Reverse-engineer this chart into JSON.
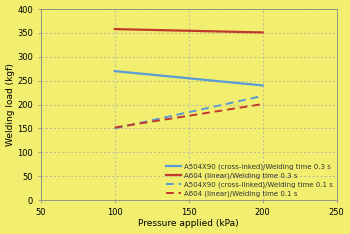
{
  "title": "",
  "xlabel": "Pressure applied (kPa)",
  "ylabel": "Welding load (kgf)",
  "background_color": "#f5f530",
  "plot_bg_color": "#f0f060",
  "xlim": [
    50,
    250
  ],
  "ylim": [
    0,
    400
  ],
  "xticks": [
    50,
    100,
    150,
    200,
    250
  ],
  "yticks": [
    0,
    50,
    100,
    150,
    200,
    250,
    300,
    350,
    400
  ],
  "x": [
    100,
    200
  ],
  "lines": [
    {
      "label": "A504X90 (cross-inked)/Welding time 0.3 s",
      "y": [
        270,
        240
      ],
      "color": "#5b9bd5",
      "linestyle": "solid",
      "linewidth": 1.6
    },
    {
      "label": "A604 (linear)/Welding time 0.3 s",
      "y": [
        358,
        351
      ],
      "color": "#c0392b",
      "linestyle": "solid",
      "linewidth": 1.6
    },
    {
      "label": "A504X90 (cross-linked)/Welding time 0.1 s",
      "y": [
        150,
        218
      ],
      "color": "#5b9bd5",
      "linestyle": "dashed",
      "linewidth": 1.4
    },
    {
      "label": "A604 (linear)/Welding time 0.1 s",
      "y": [
        152,
        201
      ],
      "color": "#c0392b",
      "linestyle": "dashed",
      "linewidth": 1.4
    }
  ],
  "legend_labels": [
    "A504X90 (cross-inked)/Welding time 0.3 s",
    "A604 (linear)/Welding time 0.3 s",
    "A504X90 (cross-linked)/Welding time 0.1 s",
    "A604 (linear)/Welding time 0.1 s"
  ],
  "grid_color": "#b8b860",
  "spine_color": "#888888"
}
